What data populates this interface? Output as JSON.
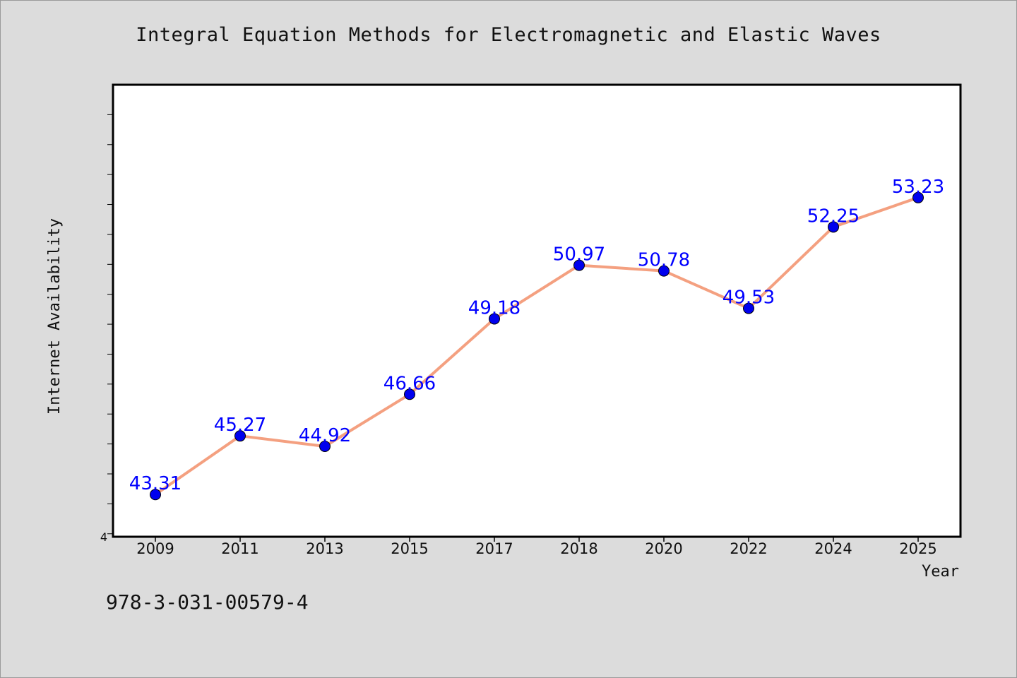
{
  "chart_data": {
    "type": "line",
    "title": "Integral Equation Methods for Electromagnetic and Elastic Waves",
    "xlabel": "Year",
    "ylabel": "Internet Availability",
    "categories": [
      "2009",
      "2011",
      "2013",
      "2015",
      "2017",
      "2018",
      "2020",
      "2022",
      "2024",
      "2025"
    ],
    "values": [
      43.31,
      45.27,
      44.92,
      46.66,
      49.18,
      50.97,
      50.78,
      49.53,
      52.25,
      53.23
    ],
    "data_labels": [
      "43.31",
      "45.27",
      "44.92",
      "46.66",
      "49.18",
      "50.97",
      "50.78",
      "49.53",
      "52.25",
      "53.23"
    ],
    "ylim": [
      41.9,
      57
    ],
    "y_tick_label": "4",
    "y_ticks": [
      42,
      43,
      44,
      45,
      46,
      47,
      48,
      49,
      50,
      51,
      52,
      53,
      54,
      55,
      56
    ],
    "grid": false,
    "legend": "none",
    "colors": {
      "line": "#f4a080",
      "marker": "#0000ee",
      "label": "#0000ff",
      "plot_background": "#ffffff",
      "page_background": "#dcdcdc"
    }
  },
  "footer": {
    "isbn": "978-3-031-00579-4"
  }
}
